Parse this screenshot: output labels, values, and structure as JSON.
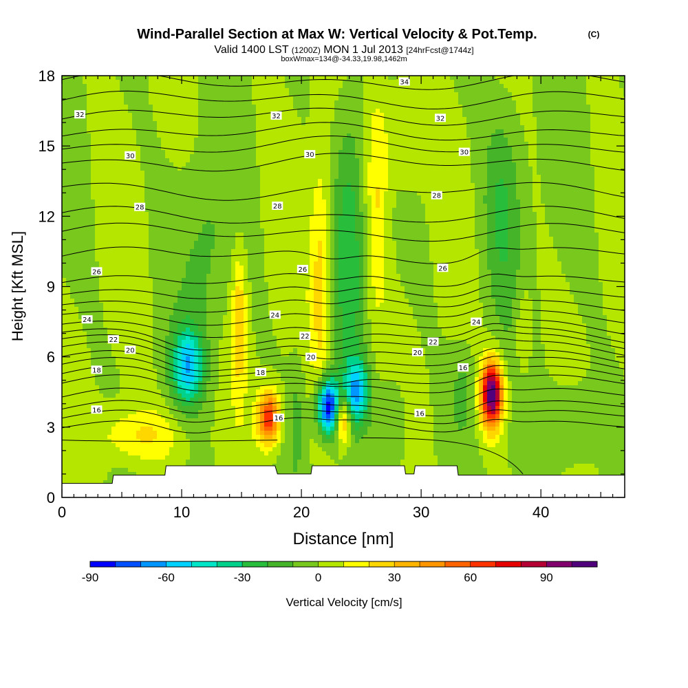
{
  "chart_data": {
    "type": "heatmap",
    "title": "Wind-Parallel Section at Max W: Vertical Velocity & Pot.Temp.",
    "title_mark": "(C)",
    "subtitle_parts": [
      "Valid 1400 LST",
      "(1200Z)",
      "MON 1 Jul 2013",
      "[24hrFcst@1744z]"
    ],
    "subtitle2": "boxWmax=134@-34.33,19.98,1462m",
    "xlabel": "Distance [nm]",
    "ylabel": "Height [Kft MSL]",
    "xlim": [
      0,
      47
    ],
    "ylim": [
      0,
      18
    ],
    "xticks": [
      "0",
      "10",
      "20",
      "30",
      "40"
    ],
    "yticks": [
      "0",
      "3",
      "6",
      "9",
      "12",
      "15",
      "18"
    ],
    "colorbar": {
      "label": "Vertical Velocity [cm/s]",
      "min": -90,
      "step": 10,
      "tick_labels": [
        "-90",
        "-60",
        "-30",
        "0",
        "30",
        "60",
        "90"
      ],
      "colors": [
        "#0000ff",
        "#0050ff",
        "#0096ff",
        "#00d2ff",
        "#00e6c8",
        "#00d28c",
        "#28be3c",
        "#46b428",
        "#78c81e",
        "#b4e600",
        "#ffff00",
        "#ffd700",
        "#ffb400",
        "#ff9600",
        "#ff6400",
        "#ff3200",
        "#e60000",
        "#b40032",
        "#82006e",
        "#50007d"
      ]
    },
    "isentropes": {
      "levels": [
        16,
        18,
        20,
        22,
        24,
        26,
        28,
        30,
        32,
        34
      ],
      "labels": [
        {
          "text": "16",
          "x": 2.9,
          "y": 3.75
        },
        {
          "text": "16",
          "x": 18.1,
          "y": 3.4
        },
        {
          "text": "16",
          "x": 29.9,
          "y": 3.6
        },
        {
          "text": "18",
          "x": 2.9,
          "y": 5.45
        },
        {
          "text": "18",
          "x": 16.6,
          "y": 5.35
        },
        {
          "text": "16",
          "x": 33.5,
          "y": 5.55
        },
        {
          "text": "20",
          "x": 5.7,
          "y": 6.3
        },
        {
          "text": "20",
          "x": 20.8,
          "y": 6.0
        },
        {
          "text": "20",
          "x": 29.7,
          "y": 6.2
        },
        {
          "text": "22",
          "x": 4.3,
          "y": 6.75
        },
        {
          "text": "22",
          "x": 20.3,
          "y": 6.9
        },
        {
          "text": "22",
          "x": 31.0,
          "y": 6.65
        },
        {
          "text": "24",
          "x": 2.1,
          "y": 7.6
        },
        {
          "text": "24",
          "x": 17.8,
          "y": 7.8
        },
        {
          "text": "24",
          "x": 34.6,
          "y": 7.5
        },
        {
          "text": "26",
          "x": 2.9,
          "y": 9.65
        },
        {
          "text": "26",
          "x": 20.1,
          "y": 9.75
        },
        {
          "text": "26",
          "x": 31.8,
          "y": 9.8
        },
        {
          "text": "28",
          "x": 6.5,
          "y": 12.4
        },
        {
          "text": "28",
          "x": 18.0,
          "y": 12.45
        },
        {
          "text": "28",
          "x": 31.3,
          "y": 12.9
        },
        {
          "text": "30",
          "x": 5.7,
          "y": 14.6
        },
        {
          "text": "30",
          "x": 20.7,
          "y": 14.65
        },
        {
          "text": "30",
          "x": 33.6,
          "y": 14.75
        },
        {
          "text": "32",
          "x": 1.5,
          "y": 16.35
        },
        {
          "text": "32",
          "x": 17.9,
          "y": 16.3
        },
        {
          "text": "32",
          "x": 31.6,
          "y": 16.2
        },
        {
          "text": "34",
          "x": 28.6,
          "y": 17.75
        }
      ]
    },
    "velocity_features": [
      {
        "x": 6.5,
        "y": 2.6,
        "w": -3.5,
        "h": 1.2,
        "v": 22
      },
      {
        "x": 17.3,
        "y": 3.4,
        "w": 0.9,
        "h": 1.1,
        "v": 70
      },
      {
        "x": 22.2,
        "y": 3.9,
        "w": 0.9,
        "h": 1.2,
        "v": -90
      },
      {
        "x": 24.6,
        "y": 4.5,
        "w": 1.0,
        "h": 1.3,
        "v": -55
      },
      {
        "x": 23.5,
        "y": 3.3,
        "w": 0.6,
        "h": 1.0,
        "v": 45
      },
      {
        "x": 35.9,
        "y": 4.4,
        "w": 0.9,
        "h": 1.4,
        "v": 110
      },
      {
        "x": 10.5,
        "y": 5.6,
        "w": 1.3,
        "h": 1.6,
        "v": -55
      },
      {
        "x": 14.8,
        "y": 7.5,
        "w": 0.6,
        "h": 3.0,
        "v": 30
      },
      {
        "x": 21.6,
        "y": 9.0,
        "w": 0.9,
        "h": 5.5,
        "v": 25
      },
      {
        "x": 24.0,
        "y": 11.0,
        "w": 1.3,
        "h": 6.0,
        "v": -25
      },
      {
        "x": 26.3,
        "y": 12.5,
        "w": 0.9,
        "h": 5.0,
        "v": 20
      },
      {
        "x": 36.8,
        "y": 12.5,
        "w": 1.6,
        "h": 4.5,
        "v": -20
      },
      {
        "x": 28.5,
        "y": 15.5,
        "w": 2.0,
        "h": 2.5,
        "v": 15
      },
      {
        "x": 38.5,
        "y": 7.0,
        "w": 0.7,
        "h": 2.0,
        "v": 15
      },
      {
        "x": 12.0,
        "y": 10.5,
        "w": 2.0,
        "h": 4.0,
        "v": -12
      }
    ],
    "terrain_max_kft": [
      [
        0,
        0.6
      ],
      [
        4.2,
        0.6
      ],
      [
        4.3,
        0.95
      ],
      [
        8.6,
        0.95
      ],
      [
        8.7,
        1.35
      ],
      [
        17.8,
        1.35
      ],
      [
        18.0,
        1.0
      ],
      [
        20.8,
        1.0
      ],
      [
        20.9,
        1.35
      ],
      [
        28.6,
        1.35
      ],
      [
        28.7,
        1.0
      ],
      [
        29.4,
        1.0
      ],
      [
        29.5,
        1.35
      ],
      [
        33.0,
        1.35
      ],
      [
        33.1,
        0.95
      ],
      [
        47,
        0.95
      ]
    ]
  }
}
